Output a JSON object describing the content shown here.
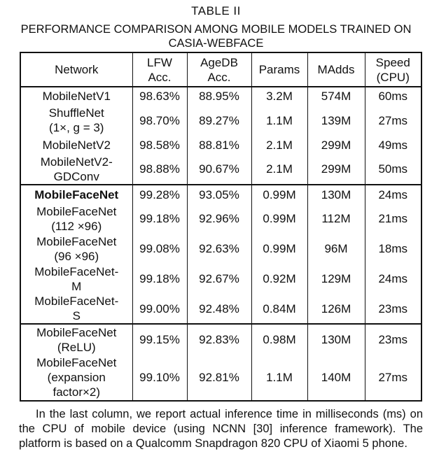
{
  "table": {
    "label": "TABLE II",
    "title_line1": "PERFORMANCE COMPARISON AMONG MOBILE MODELS TRAINED ON",
    "title_line2": "CASIA-WEBFACE",
    "headers": [
      [
        "Network"
      ],
      [
        "LFW",
        "Acc."
      ],
      [
        "AgeDB",
        "Acc."
      ],
      [
        "Params"
      ],
      [
        "MAdds"
      ],
      [
        "Speed",
        "(CPU)"
      ]
    ],
    "groups": [
      [
        {
          "network": [
            "MobileNetV1"
          ],
          "lfw": "98.63%",
          "agedb": "88.95%",
          "params": "3.2M",
          "madds": "574M",
          "speed": "60ms",
          "h": 26
        },
        {
          "network": [
            "ShuffleNet",
            "(1×, g = 3)"
          ],
          "lfw": "98.70%",
          "agedb": "89.27%",
          "params": "1.1M",
          "madds": "139M",
          "speed": "27ms",
          "h": 44
        },
        {
          "network": [
            "MobileNetV2"
          ],
          "lfw": "98.58%",
          "agedb": "88.81%",
          "params": "2.1M",
          "madds": "299M",
          "speed": "49ms",
          "h": 26
        },
        {
          "network": [
            "MobileNetV2-",
            "GDConv"
          ],
          "lfw": "98.88%",
          "agedb": "90.67%",
          "params": "2.1M",
          "madds": "299M",
          "speed": "50ms",
          "h": 44
        }
      ],
      [
        {
          "network": [
            "MobileFaceNet"
          ],
          "bold": true,
          "lfw": "99.28%",
          "agedb": "93.05%",
          "params": "0.99M",
          "madds": "130M",
          "speed": "24ms",
          "h": 27
        },
        {
          "network": [
            "MobileFaceNet",
            "(112 ×96)"
          ],
          "lfw": "99.18%",
          "agedb": "92.96%",
          "params": "0.99M",
          "madds": "112M",
          "speed": "21ms",
          "h": 43
        },
        {
          "network": [
            "MobileFaceNet",
            "(96 ×96)"
          ],
          "lfw": "99.08%",
          "agedb": "92.63%",
          "params": "0.99M",
          "madds": "96M",
          "speed": "18ms",
          "h": 43
        },
        {
          "network": [
            "MobileFaceNet-",
            "M"
          ],
          "lfw": "99.18%",
          "agedb": "92.67%",
          "params": "0.92M",
          "madds": "129M",
          "speed": "24ms",
          "h": 43
        },
        {
          "network": [
            "MobileFaceNet-",
            "S"
          ],
          "lfw": "99.00%",
          "agedb": "92.48%",
          "params": "0.84M",
          "madds": "126M",
          "speed": "23ms",
          "h": 43
        }
      ],
      [
        {
          "network": [
            "MobileFaceNet",
            "(ReLU)"
          ],
          "lfw": "99.15%",
          "agedb": "92.83%",
          "params": "0.98M",
          "madds": "130M",
          "speed": "23ms",
          "h": 44
        },
        {
          "network": [
            "MobileFaceNet",
            "(expansion",
            "factor×2)"
          ],
          "lfw": "99.10%",
          "agedb": "92.81%",
          "params": "1.1M",
          "madds": "140M",
          "speed": "27ms",
          "h": 66
        }
      ]
    ]
  },
  "note": "In the last column, we report actual inference time in milliseconds (ms) on the CPU of mobile device (using NCNN [30] inference framework). The platform is based on a Qualcomm Snapdragon 820 CPU of Xiaomi 5 phone."
}
